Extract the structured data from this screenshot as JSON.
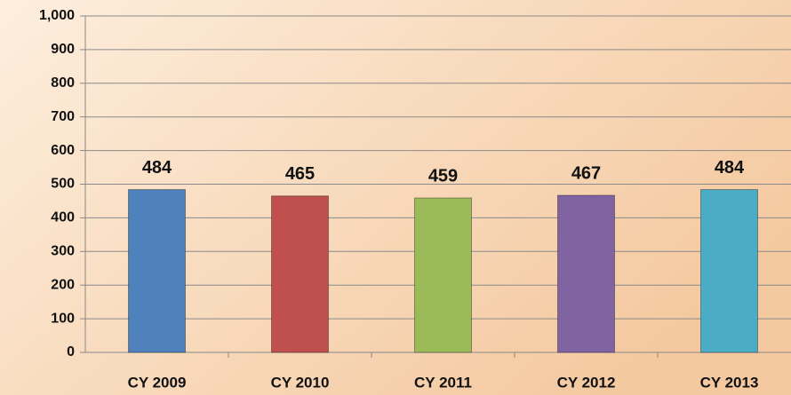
{
  "chart_data": {
    "type": "bar",
    "categories": [
      "CY 2009",
      "CY 2010",
      "CY 2011",
      "CY 2012",
      "CY 2013"
    ],
    "values": [
      484,
      465,
      459,
      467,
      484
    ],
    "colors": [
      "#4f81bd",
      "#c0504d",
      "#9bbb59",
      "#8064a2",
      "#4bacc6"
    ],
    "ylim": [
      0,
      1000
    ],
    "yticks": [
      0,
      100,
      200,
      300,
      400,
      500,
      600,
      700,
      800,
      900,
      {
        "value": 1000,
        "label": "1,000"
      }
    ],
    "grid": true
  }
}
